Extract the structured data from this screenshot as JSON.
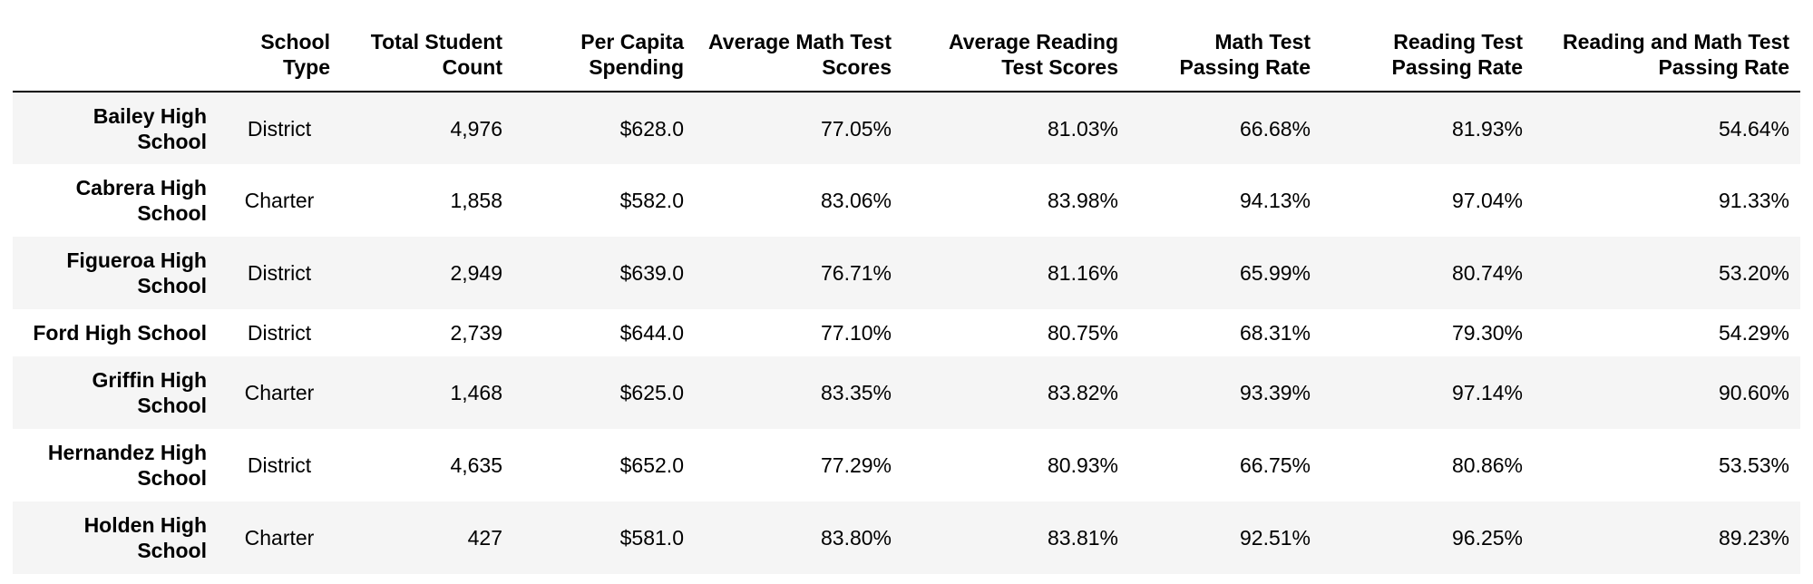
{
  "table": {
    "columns": [
      "School Type",
      "Total Student Count",
      "Per Capita Spending",
      "Average Math Test Scores",
      "Average Reading Test Scores",
      "Math Test Passing Rate",
      "Reading Test Passing Rate",
      "Reading and Math Test Passing Rate"
    ],
    "rows": [
      {
        "school": "Bailey High School",
        "cells": [
          "District",
          "4,976",
          "$628.0",
          "77.05%",
          "81.03%",
          "66.68%",
          "81.93%",
          "54.64%"
        ]
      },
      {
        "school": "Cabrera High School",
        "cells": [
          "Charter",
          "1,858",
          "$582.0",
          "83.06%",
          "83.98%",
          "94.13%",
          "97.04%",
          "91.33%"
        ]
      },
      {
        "school": "Figueroa High School",
        "cells": [
          "District",
          "2,949",
          "$639.0",
          "76.71%",
          "81.16%",
          "65.99%",
          "80.74%",
          "53.20%"
        ]
      },
      {
        "school": "Ford High School",
        "cells": [
          "District",
          "2,739",
          "$644.0",
          "77.10%",
          "80.75%",
          "68.31%",
          "79.30%",
          "54.29%"
        ]
      },
      {
        "school": "Griffin High School",
        "cells": [
          "Charter",
          "1,468",
          "$625.0",
          "83.35%",
          "83.82%",
          "93.39%",
          "97.14%",
          "90.60%"
        ]
      },
      {
        "school": "Hernandez High School",
        "cells": [
          "District",
          "4,635",
          "$652.0",
          "77.29%",
          "80.93%",
          "66.75%",
          "80.86%",
          "53.53%"
        ]
      },
      {
        "school": "Holden High School",
        "cells": [
          "Charter",
          "427",
          "$581.0",
          "83.80%",
          "83.81%",
          "92.51%",
          "96.25%",
          "89.23%"
        ]
      }
    ]
  }
}
